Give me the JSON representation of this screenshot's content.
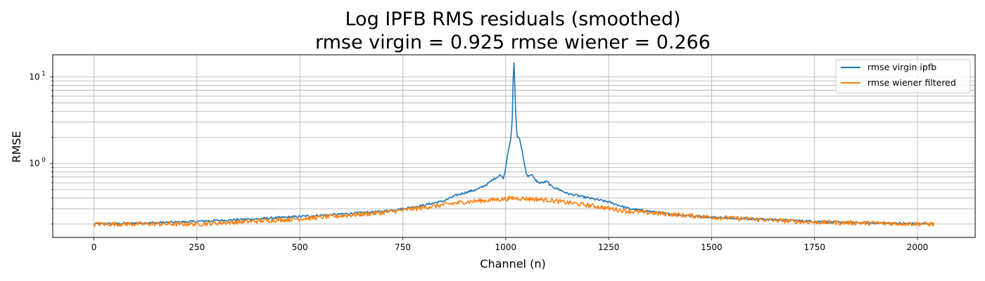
{
  "chart_data": {
    "type": "line",
    "title": [
      "Log IPFB RMS residuals (smoothed)",
      "rmse virgin = 0.925 rmse wiener = 0.266"
    ],
    "xlabel": "Channel (n)",
    "ylabel": "RMSE",
    "y_scale": "log",
    "xlim": [
      -100,
      2140
    ],
    "ylim": [
      0.14,
      18
    ],
    "x_ticks": [
      0,
      250,
      500,
      750,
      1000,
      1250,
      1500,
      1750,
      2000
    ],
    "y_ticks": [
      {
        "value": 1,
        "label": "10",
        "exp": "0"
      },
      {
        "value": 10,
        "label": "10",
        "exp": "1"
      }
    ],
    "grid": true,
    "legend": "top-right",
    "series": [
      {
        "name": "rmse virgin ipfb",
        "color": "#1f77b4",
        "x": [
          0,
          200,
          400,
          600,
          700,
          750,
          800,
          850,
          880,
          900,
          930,
          950,
          960,
          970,
          980,
          985,
          990,
          995,
          1000,
          1005,
          1010,
          1013,
          1016,
          1018,
          1020,
          1022,
          1025,
          1028,
          1031,
          1034,
          1037,
          1040,
          1045,
          1050,
          1055,
          1060,
          1065,
          1070,
          1080,
          1090,
          1100,
          1110,
          1130,
          1150,
          1180,
          1200,
          1250,
          1300,
          1350,
          1400,
          1500,
          1600,
          1800,
          2040
        ],
        "y": [
          0.2,
          0.21,
          0.23,
          0.26,
          0.28,
          0.3,
          0.33,
          0.37,
          0.43,
          0.46,
          0.5,
          0.56,
          0.6,
          0.66,
          0.7,
          0.75,
          0.7,
          0.68,
          0.9,
          1.3,
          1.7,
          2.0,
          3.5,
          9.0,
          14.5,
          8.0,
          3.0,
          2.0,
          2.05,
          1.9,
          1.6,
          1.4,
          1.0,
          0.78,
          0.7,
          0.75,
          0.72,
          0.66,
          0.6,
          0.6,
          0.62,
          0.55,
          0.5,
          0.45,
          0.42,
          0.4,
          0.36,
          0.3,
          0.28,
          0.26,
          0.24,
          0.23,
          0.21,
          0.2
        ]
      },
      {
        "name": "rmse wiener filtered",
        "color": "#ff7f0e",
        "x": [
          0,
          250,
          500,
          700,
          800,
          900,
          1000,
          1020,
          1100,
          1200,
          1300,
          1500,
          1750,
          2040
        ],
        "y": [
          0.2,
          0.2,
          0.23,
          0.27,
          0.31,
          0.36,
          0.39,
          0.4,
          0.38,
          0.33,
          0.28,
          0.24,
          0.21,
          0.2
        ],
        "noise": 0.06
      }
    ]
  }
}
